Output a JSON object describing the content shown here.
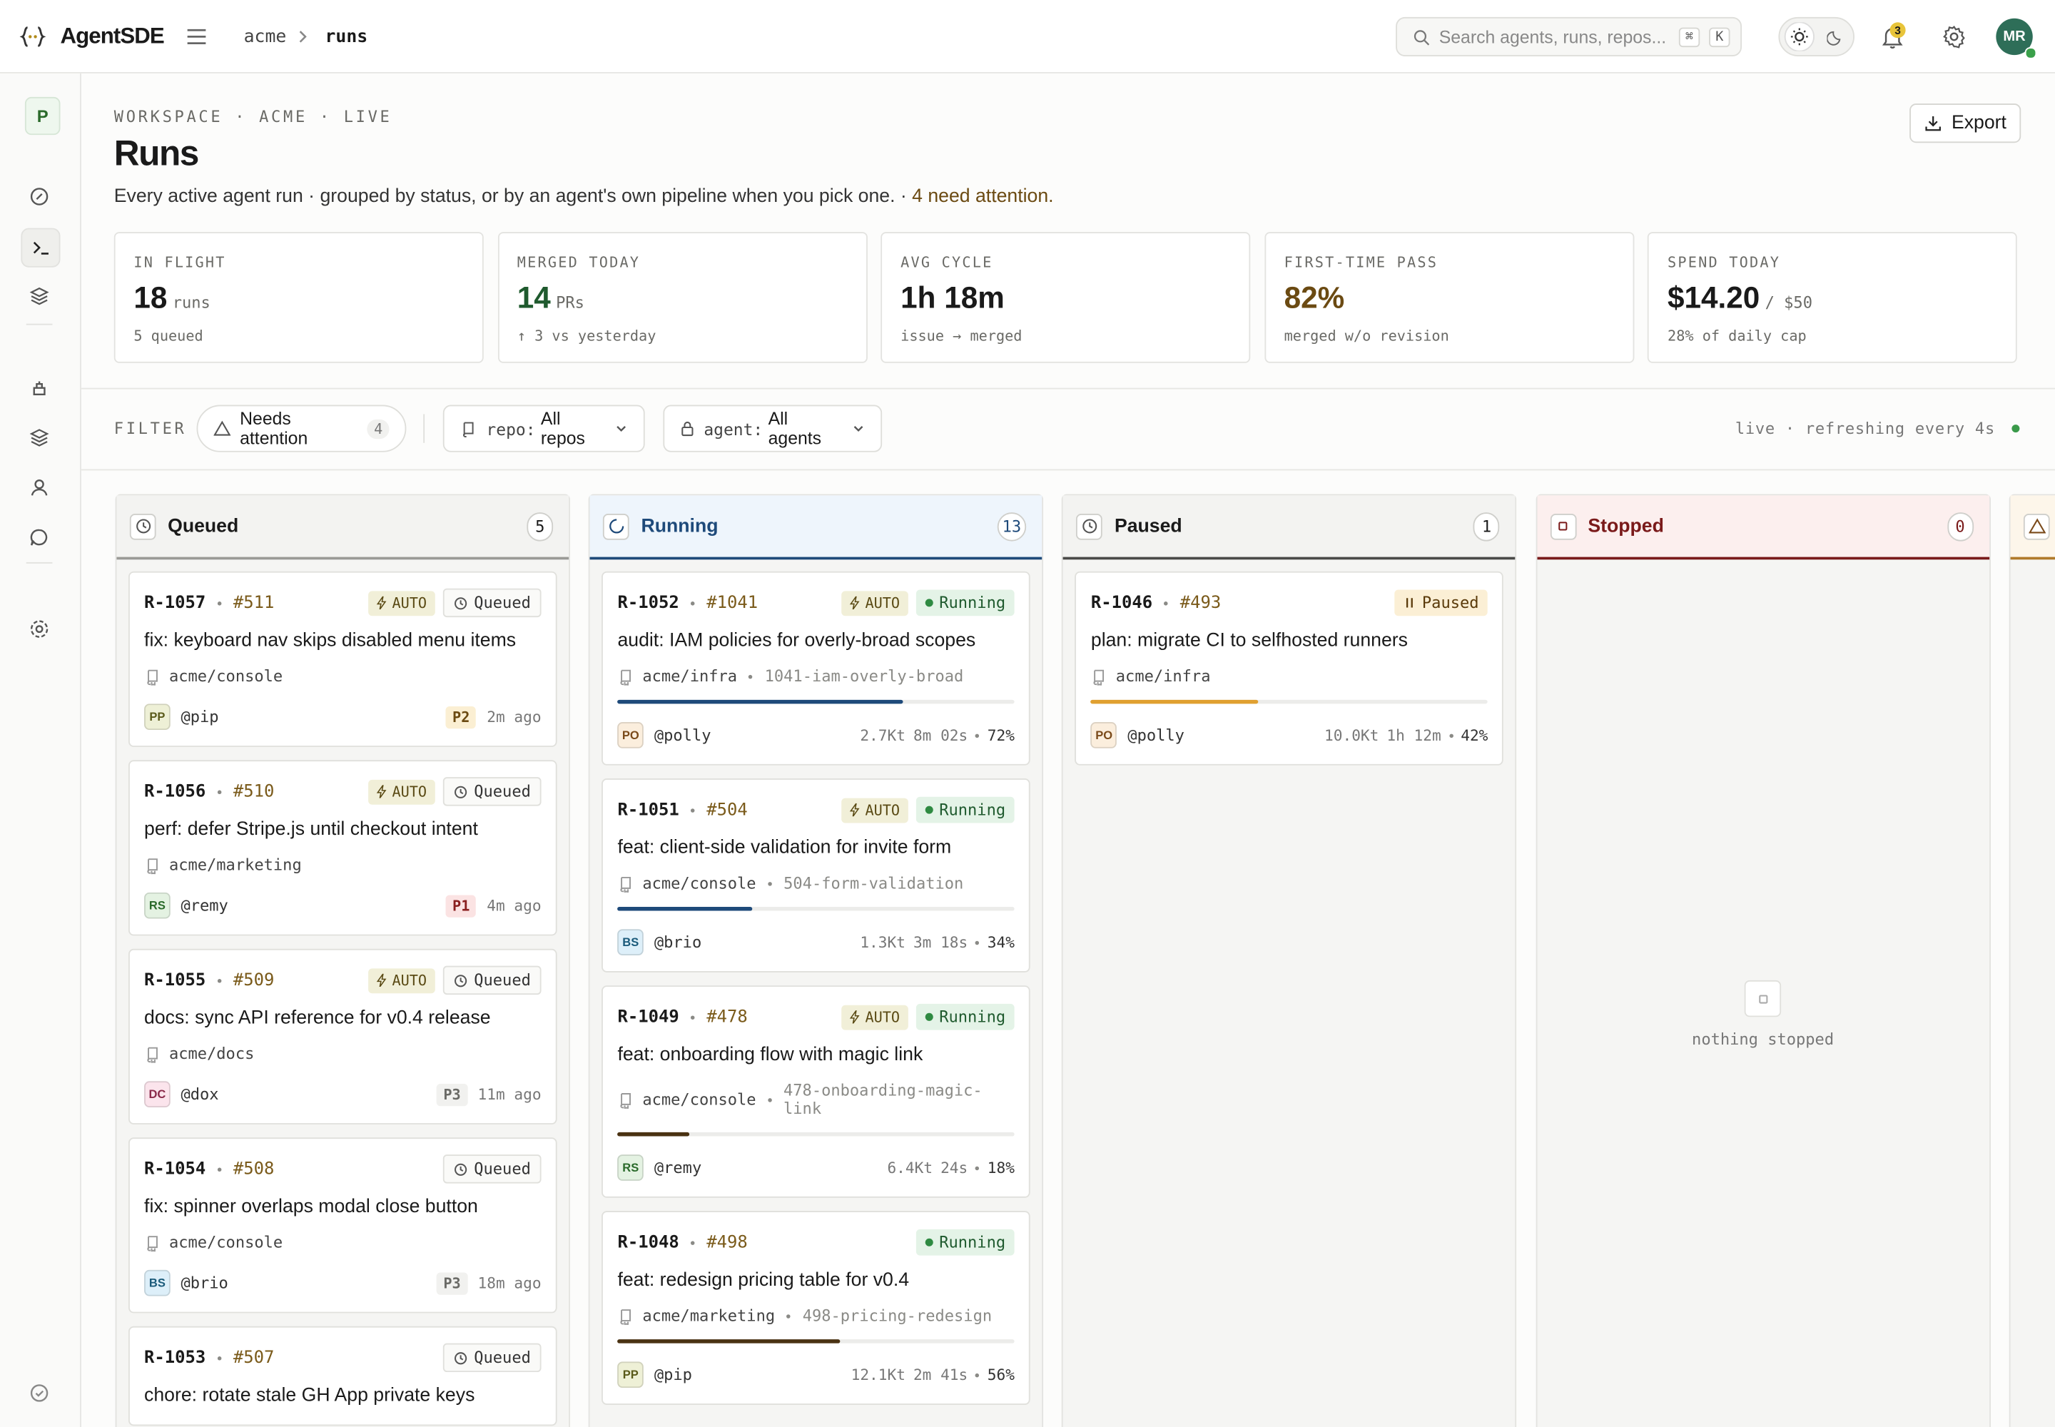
{
  "topbar": {
    "brand": "AgentSDE",
    "breadcrumb": [
      "acme",
      "runs"
    ],
    "search_placeholder": "Search agents, runs, repos...",
    "search_keys": [
      "⌘",
      "K"
    ],
    "notifications": "3",
    "avatar": "MR"
  },
  "sidebar": {
    "workspace": "P"
  },
  "page": {
    "eyebrow": "WORKSPACE · ACME · LIVE",
    "title": "Runs",
    "description": "Every active agent run · grouped by status, or by an agent's own pipeline when you pick one. ·",
    "attention": "4 need attention.",
    "export": "Export"
  },
  "stats": [
    {
      "label": "IN FLIGHT",
      "value": "18",
      "unit": "runs",
      "note": "5 queued",
      "color": "#1a1a1a"
    },
    {
      "label": "MERGED TODAY",
      "value": "14",
      "unit": "PRs",
      "note": "↑ 3 vs yesterday",
      "color": "#1f5a2e"
    },
    {
      "label": "AVG CYCLE",
      "value": "1h 18m",
      "note": "issue → merged",
      "color": "#1a1a1a"
    },
    {
      "label": "FIRST-TIME PASS",
      "value": "82%",
      "note": "merged w/o revision",
      "color": "#6b4a12"
    },
    {
      "label": "SPEND TODAY",
      "value": "$14.20",
      "unit": "/ $50",
      "note": "28% of daily cap",
      "color": "#1a1a1a"
    }
  ],
  "filter": {
    "label": "FILTER",
    "attention": "Needs attention",
    "attention_count": "4",
    "repo_key": "repo:",
    "repo_value": "All repos",
    "agent_key": "agent:",
    "agent_value": "All agents",
    "live": "live · refreshing every 4s"
  },
  "columns": [
    {
      "name": "Queued",
      "count": "5",
      "color": "#1a1a1a",
      "line": "#9a9a96",
      "bg": "#f3f3f1",
      "cards": [
        {
          "id": "R-1057",
          "number": "#511",
          "auto": "AUTO",
          "status": "Queued",
          "title": "fix: keyboard nav skips disabled menu items",
          "repo": "acme/console",
          "avatar": "PP",
          "avatar_color": [
            "#eef0d6",
            "#5a5a1a"
          ],
          "handle": "@pip",
          "priority": "P2",
          "priority_color": [
            "#fbefd3",
            "#6b4a12"
          ],
          "time": "2m ago"
        },
        {
          "id": "R-1056",
          "number": "#510",
          "auto": "AUTO",
          "status": "Queued",
          "title": "perf: defer Stripe.js until checkout intent",
          "repo": "acme/marketing",
          "avatar": "RS",
          "avatar_color": [
            "#e4f2e2",
            "#2a6a2a"
          ],
          "handle": "@remy",
          "priority": "P1",
          "priority_color": [
            "#fbe3e3",
            "#8a1f1f"
          ],
          "time": "4m ago"
        },
        {
          "id": "R-1055",
          "number": "#509",
          "auto": "AUTO",
          "status": "Queued",
          "title": "docs: sync API reference for v0.4 release",
          "repo": "acme/docs",
          "avatar": "DC",
          "avatar_color": [
            "#fbe4ec",
            "#8a2a4a"
          ],
          "handle": "@dox",
          "priority": "P3",
          "priority_color": [
            "#f1f1ef",
            "#6a6a66"
          ],
          "time": "11m ago"
        },
        {
          "id": "R-1054",
          "number": "#508",
          "status": "Queued",
          "title": "fix: spinner overlaps modal close button",
          "repo": "acme/console",
          "avatar": "BS",
          "avatar_color": [
            "#ddeff9",
            "#1a5a7a"
          ],
          "handle": "@brio",
          "priority": "P3",
          "priority_color": [
            "#f1f1ef",
            "#6a6a66"
          ],
          "time": "18m ago"
        },
        {
          "id": "R-1053",
          "number": "#507",
          "status": "Queued",
          "title": "chore: rotate stale GH App private keys"
        }
      ]
    },
    {
      "name": "Running",
      "count": "13",
      "color": "#1e4a7a",
      "line": "#1e4a7a",
      "bg": "#eef5fc",
      "cards": [
        {
          "id": "R-1052",
          "number": "#1041",
          "auto": "AUTO",
          "status": "Running",
          "title": "audit: IAM policies for overly-broad scopes",
          "repo": "acme/infra",
          "branch": "1041-iam-overly-broad",
          "progress": 72,
          "progress_label": "72%",
          "bar_color": "#1e4a7a",
          "avatar": "PO",
          "avatar_color": [
            "#fbeedd",
            "#7a4a1a"
          ],
          "handle": "@polly",
          "tokens": "2.7Kt",
          "duration": "8m 02s"
        },
        {
          "id": "R-1051",
          "number": "#504",
          "auto": "AUTO",
          "status": "Running",
          "title": "feat: client-side validation for invite form",
          "repo": "acme/console",
          "branch": "504-form-validation",
          "progress": 34,
          "progress_label": "34%",
          "bar_color": "#1e4a7a",
          "avatar": "BS",
          "avatar_color": [
            "#ddeff9",
            "#1a5a7a"
          ],
          "handle": "@brio",
          "tokens": "1.3Kt",
          "duration": "3m 18s"
        },
        {
          "id": "R-1049",
          "number": "#478",
          "auto": "AUTO",
          "status": "Running",
          "title": "feat: onboarding flow with magic link",
          "repo": "acme/console",
          "branch": "478-onboarding-magic-link",
          "progress": 18,
          "progress_label": "18%",
          "bar_color": "#4a3212",
          "avatar": "RS",
          "avatar_color": [
            "#e4f2e2",
            "#2a6a2a"
          ],
          "handle": "@remy",
          "tokens": "6.4Kt",
          "duration": "24s"
        },
        {
          "id": "R-1048",
          "number": "#498",
          "status": "Running",
          "title": "feat: redesign pricing table for v0.4",
          "repo": "acme/marketing",
          "branch": "498-pricing-redesign",
          "progress": 56,
          "progress_label": "56%",
          "bar_color": "#4a3212",
          "avatar": "PP",
          "avatar_color": [
            "#eef0d6",
            "#5a5a1a"
          ],
          "handle": "@pip",
          "tokens": "12.1Kt",
          "duration": "2m 41s"
        }
      ]
    },
    {
      "name": "Paused",
      "count": "1",
      "color": "#1a1a1a",
      "line": "#4a4a48",
      "bg": "#f3f3f1",
      "cards": [
        {
          "id": "R-1046",
          "number": "#493",
          "status": "Paused",
          "title": "plan: migrate CI to selfhosted runners",
          "repo": "acme/infra",
          "progress": 42,
          "progress_label": "42%",
          "bar_color": "#e0a030",
          "avatar": "PO",
          "avatar_color": [
            "#fbeedd",
            "#7a4a1a"
          ],
          "handle": "@polly",
          "tokens": "10.0Kt",
          "duration": "1h 12m"
        }
      ]
    },
    {
      "name": "Stopped",
      "count": "0",
      "color": "#7a1a1a",
      "line": "#7a1a1a",
      "bg": "#fcefee",
      "empty": "nothing stopped",
      "cards": []
    }
  ]
}
